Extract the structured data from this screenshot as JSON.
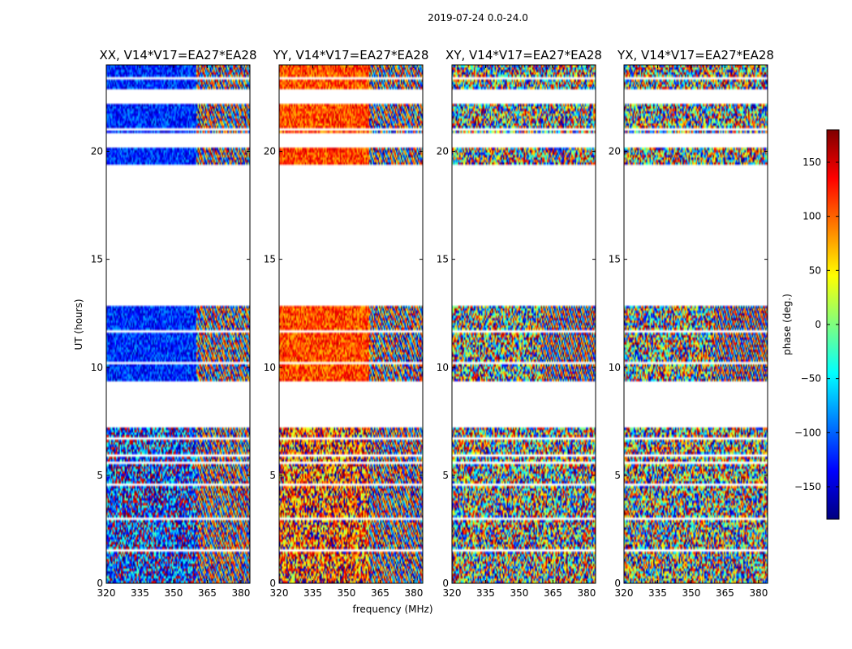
{
  "figure": {
    "suptitle": "2019-07-24 0.0-24.0",
    "xlabel": "frequency (MHz)",
    "ylabel": "UT (hours)"
  },
  "colorbar": {
    "label": "phase (deg.)",
    "range": [
      -180,
      180
    ],
    "ticks": [
      150,
      100,
      50,
      0,
      -50,
      -100,
      -150
    ],
    "tick_labels": [
      "150",
      "100",
      "50",
      "0",
      "−50",
      "−100",
      "−150"
    ],
    "colormap": "jet",
    "colors": [
      "#00007f",
      "#0000ff",
      "#007fff",
      "#00ffff",
      "#7fff7f",
      "#ffff00",
      "#ff7f00",
      "#ff0000",
      "#7f0000"
    ]
  },
  "chart_data": {
    "type": "heatmap",
    "x_range": [
      320,
      384
    ],
    "y_range": [
      0,
      24
    ],
    "x_ticks": [
      320,
      335,
      350,
      365,
      380
    ],
    "x_tick_labels": [
      "320",
      "335",
      "350",
      "365",
      "380"
    ],
    "y_ticks": [
      0,
      5,
      10,
      15,
      20
    ],
    "y_tick_labels": [
      "0",
      "5",
      "10",
      "15",
      "20"
    ],
    "time_blocks": [
      [
        0.0,
        7.2
      ],
      [
        9.4,
        12.8
      ],
      [
        19.4,
        20.2
      ],
      [
        20.9,
        22.2
      ],
      [
        22.9,
        24.0
      ]
    ],
    "panels": [
      {
        "title": "XX, V14*V17=EA27*EA28",
        "polarization": "XX"
      },
      {
        "title": "YY, V14*V17=EA27*EA28",
        "polarization": "YY"
      },
      {
        "title": "XY, V14*V17=EA27*EA28",
        "polarization": "XY"
      },
      {
        "title": "YX, V14*V17=EA27*EA28",
        "polarization": "YX"
      }
    ]
  }
}
